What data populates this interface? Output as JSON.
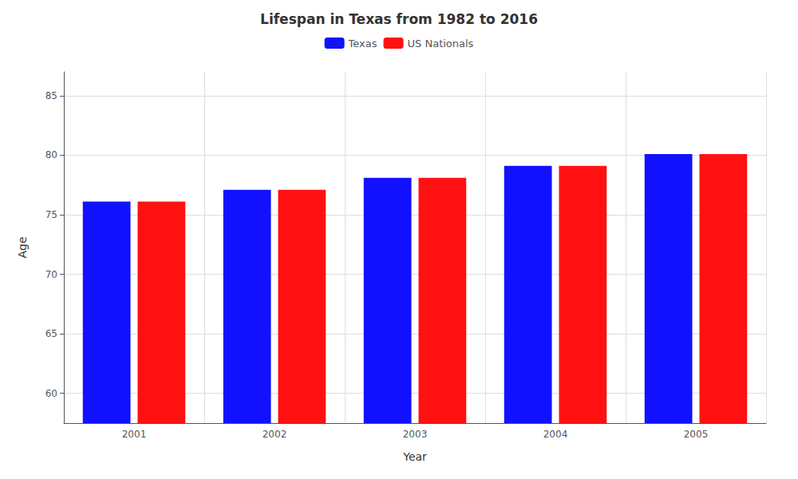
{
  "chart_data": {
    "type": "bar",
    "title": "Lifespan in Texas from 1982 to 2016",
    "xlabel": "Year",
    "ylabel": "Age",
    "categories": [
      "2001",
      "2002",
      "2003",
      "2004",
      "2005"
    ],
    "series": [
      {
        "name": "Texas",
        "color": "#1111ff",
        "values": [
          76.1,
          77.1,
          78.1,
          79.1,
          80.1
        ]
      },
      {
        "name": "US Nationals",
        "color": "#ff1111",
        "values": [
          76.1,
          77.1,
          78.1,
          79.1,
          80.1
        ]
      }
    ],
    "ylim": [
      57.5,
      87
    ],
    "yticks": [
      60,
      65,
      70,
      75,
      80,
      85
    ],
    "grid": true,
    "legend": "top"
  }
}
